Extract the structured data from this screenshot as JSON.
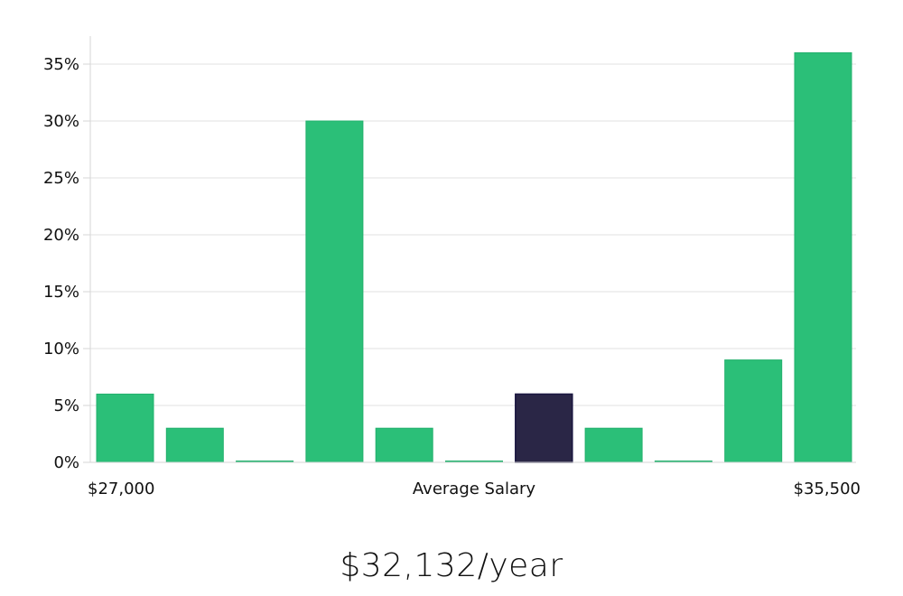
{
  "chart_data": {
    "type": "bar",
    "title": "",
    "xlabel": "Average Salary",
    "ylabel": "",
    "ylim": [
      0,
      37.5
    ],
    "y_ticks": [
      0,
      5,
      10,
      15,
      20,
      25,
      30,
      35
    ],
    "y_tick_format": "%",
    "x_range_labels": {
      "min": "$27,000",
      "max": "$35,500"
    },
    "values": [
      6,
      3,
      0,
      30,
      3,
      0,
      6,
      3,
      0,
      9,
      36
    ],
    "highlight_index": 6,
    "grid": true,
    "colors": {
      "bar": "#2bbf78",
      "highlight": "#2a2646",
      "grid": "#e2e2e2",
      "axis": "#d6d6d6"
    }
  },
  "headline": {
    "salary": "$32,132/year"
  }
}
